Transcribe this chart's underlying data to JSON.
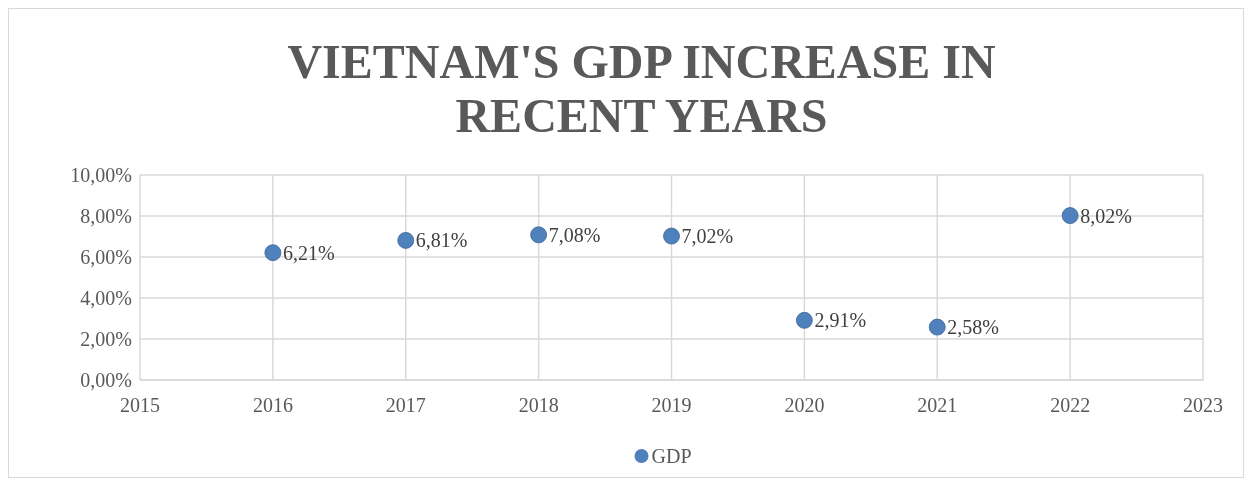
{
  "chart_data": {
    "type": "scatter",
    "title": "VIETNAM'S GDP INCREASE IN RECENT YEARS",
    "x": [
      2016,
      2017,
      2018,
      2019,
      2020,
      2021,
      2022
    ],
    "series": [
      {
        "name": "GDP",
        "color": "#4f81bd",
        "values": [
          6.21,
          6.81,
          7.08,
          7.02,
          2.91,
          2.58,
          8.02
        ],
        "value_labels": [
          "6,21%",
          "6,81%",
          "7,08%",
          "7,02%",
          "2,91%",
          "2,58%",
          "8,02%"
        ]
      }
    ],
    "xlim": [
      2015,
      2023
    ],
    "xticks": [
      2015,
      2016,
      2017,
      2018,
      2019,
      2020,
      2021,
      2022,
      2023
    ],
    "ylim": [
      0,
      10
    ],
    "yticks": [
      {
        "value": 0,
        "label": "0,00%"
      },
      {
        "value": 2,
        "label": "2,00%"
      },
      {
        "value": 4,
        "label": "4,00%"
      },
      {
        "value": 6,
        "label": "6,00%"
      },
      {
        "value": 8,
        "label": "8,00%"
      },
      {
        "value": 10,
        "label": "10,00%"
      }
    ],
    "grid": true,
    "legend": "bottom",
    "marker": "circle"
  }
}
